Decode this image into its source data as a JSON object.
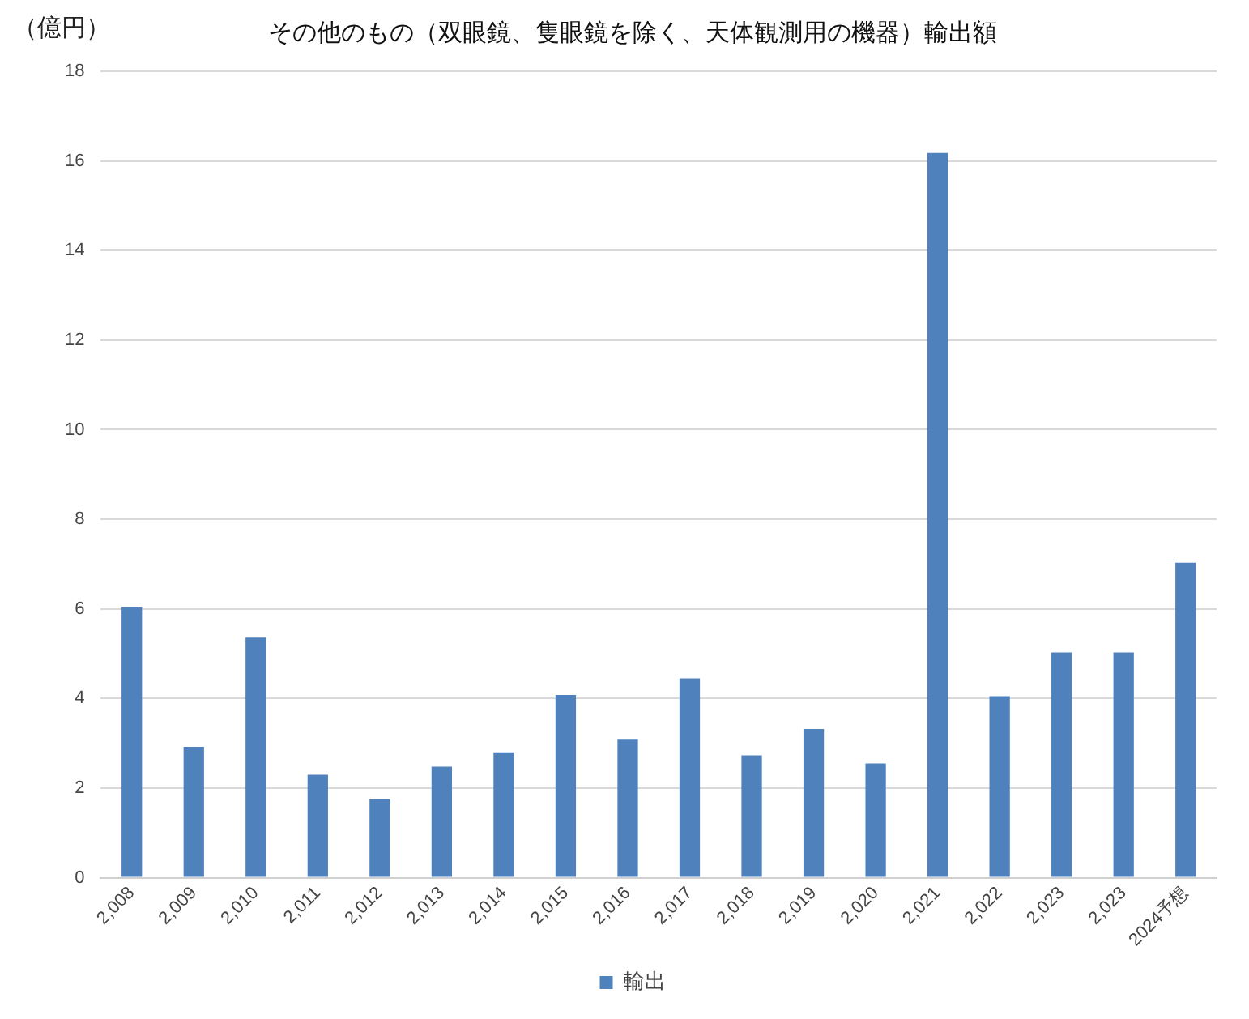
{
  "chart_data": {
    "type": "bar",
    "title": "その他のもの（双眼鏡、隻眼鏡を除く、天体観測用の機器）輸出額",
    "ylabel": "（億円）",
    "categories": [
      "2,008",
      "2,009",
      "2,010",
      "2,011",
      "2,012",
      "2,013",
      "2,014",
      "2,015",
      "2,016",
      "2,017",
      "2,018",
      "2,019",
      "2,020",
      "2,021",
      "2,022",
      "2,023",
      "2,023",
      "2024予想"
    ],
    "series": [
      {
        "name": "輸出",
        "color": "#4f81bd",
        "values": [
          6.05,
          2.92,
          5.36,
          2.3,
          1.75,
          2.48,
          2.8,
          4.08,
          3.1,
          4.45,
          2.73,
          3.32,
          2.55,
          16.18,
          4.05,
          5.03,
          5.03,
          7.03
        ]
      }
    ],
    "ylim": [
      0,
      18
    ],
    "yticks": [
      0,
      2,
      4,
      6,
      8,
      10,
      12,
      14,
      16,
      18
    ],
    "grid": "y",
    "legend": "bottom"
  }
}
